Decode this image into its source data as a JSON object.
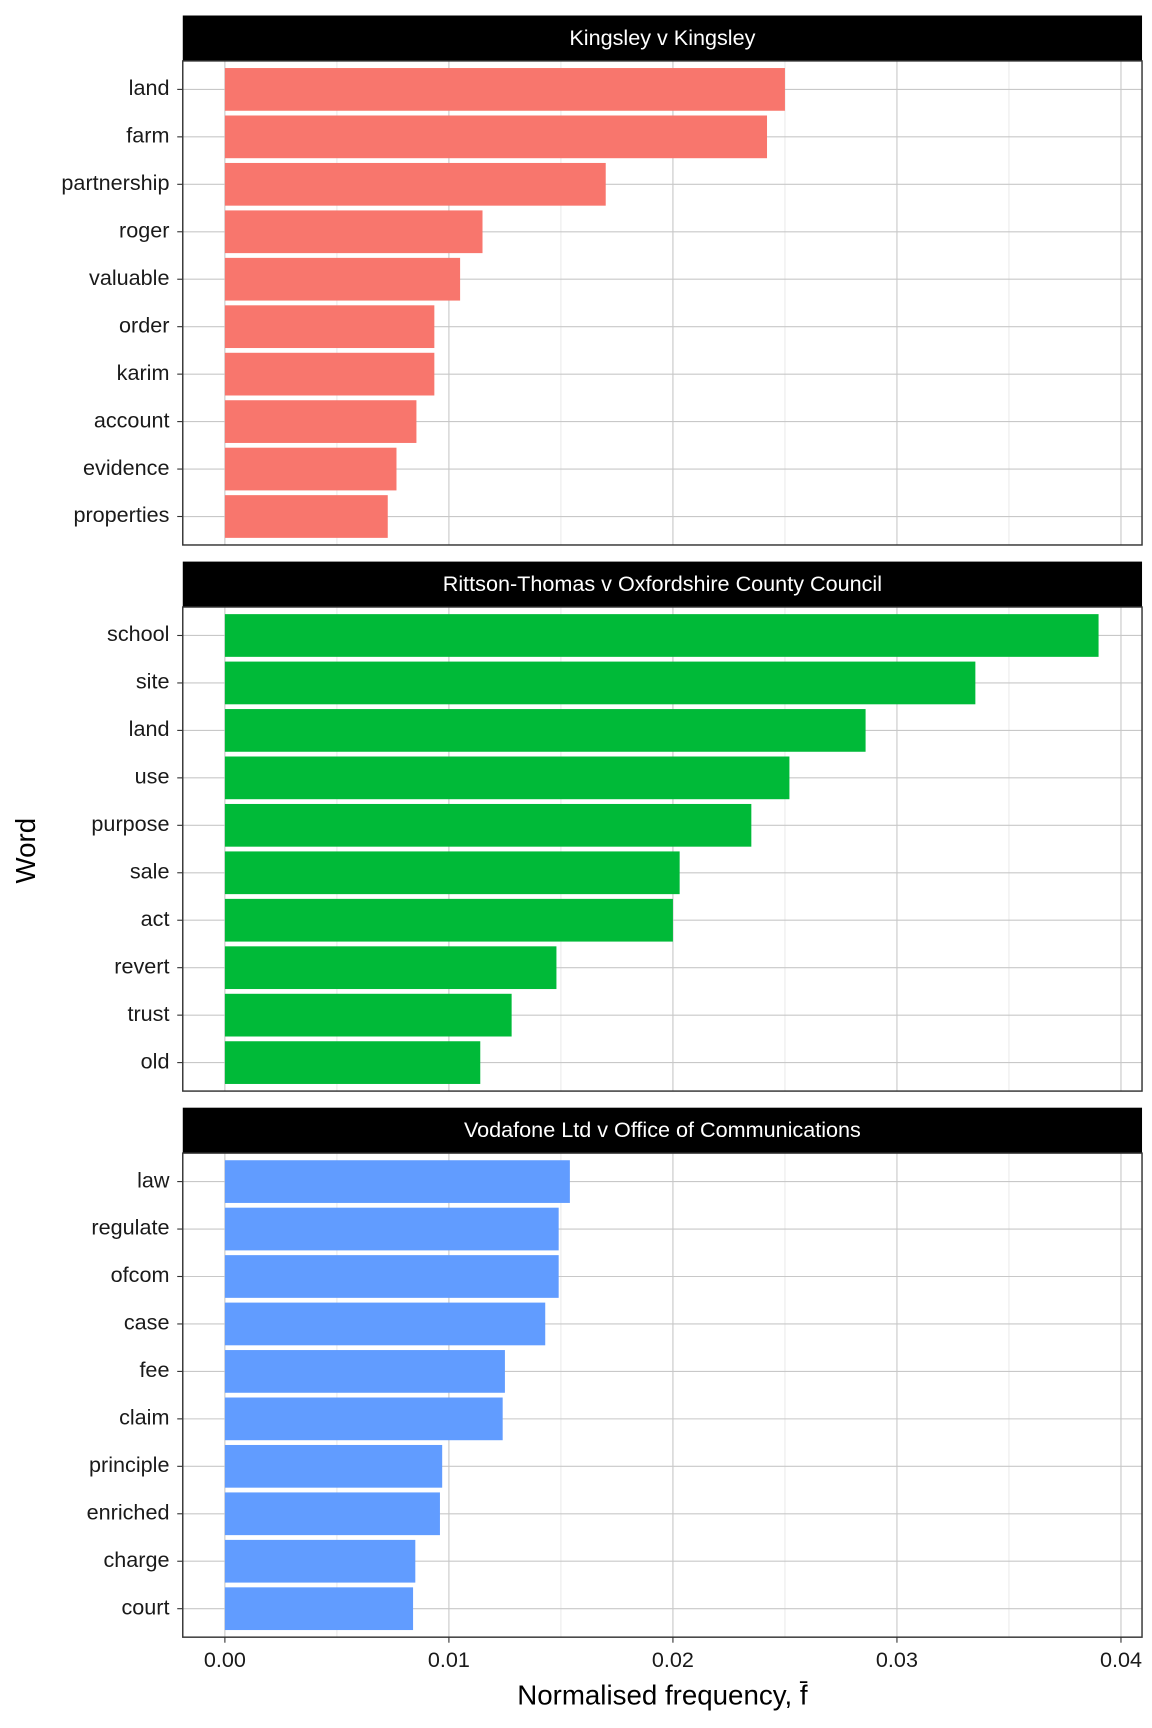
{
  "chart_data": {
    "type": "bar",
    "orientation": "horizontal",
    "x_label": "Normalised frequency, f̄",
    "y_label": "Word",
    "xlim": [
      -0.00188,
      0.04094
    ],
    "xticks": [
      {
        "value": 0,
        "label": "0.00"
      },
      {
        "value": 0.01,
        "label": "0.01"
      },
      {
        "value": 0.02,
        "label": "0.02"
      },
      {
        "value": 0.03,
        "label": "0.03"
      },
      {
        "value": 0.04,
        "label": "0.04"
      }
    ],
    "grid": true,
    "panels": [
      {
        "title": "Kingsley v Kingsley",
        "color": "#f8766d",
        "categories": [
          "land",
          "farm",
          "partnership",
          "roger",
          "valuable",
          "order",
          "karim",
          "account",
          "evidence",
          "properties"
        ],
        "values": [
          0.025,
          0.0242,
          0.017,
          0.0115,
          0.0105,
          0.00935,
          0.00935,
          0.00855,
          0.00766,
          0.00727
        ]
      },
      {
        "title": "Rittson-Thomas v Oxfordshire County Council",
        "color": "#00ba38",
        "categories": [
          "school",
          "site",
          "land",
          "use",
          "purpose",
          "sale",
          "act",
          "revert",
          "trust",
          "old"
        ],
        "values": [
          0.039,
          0.0335,
          0.0286,
          0.0252,
          0.0235,
          0.0203,
          0.02,
          0.0148,
          0.0128,
          0.0114
        ]
      },
      {
        "title": "Vodafone Ltd v Office of Communications",
        "color": "#619cff",
        "categories": [
          "law",
          "regulate",
          "ofcom",
          "case",
          "fee",
          "claim",
          "principle",
          "enriched",
          "charge",
          "court"
        ],
        "values": [
          0.0154,
          0.0149,
          0.0149,
          0.0143,
          0.0125,
          0.0124,
          0.0097,
          0.0096,
          0.0085,
          0.0084
        ]
      }
    ]
  }
}
